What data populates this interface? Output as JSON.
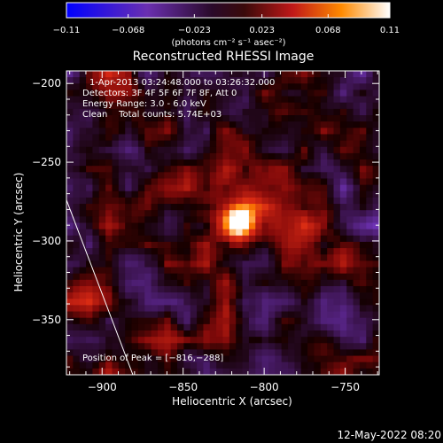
{
  "chart_data": {
    "type": "heatmap",
    "title": "Reconstructed RHESSI Image",
    "xlabel": "Heliocentric X (arcsec)",
    "ylabel": "Heliocentric Y (arcsec)",
    "xlim": [
      -922,
      -729
    ],
    "ylim": [
      -385,
      -192
    ],
    "x_ticks": [
      -900,
      -850,
      -800,
      -750
    ],
    "x_tick_labels": [
      "−900",
      "−850",
      "−800",
      "−750"
    ],
    "y_ticks": [
      -200,
      -250,
      -300,
      -350
    ],
    "y_tick_labels": [
      "−200",
      "−250",
      "−300",
      "−350"
    ],
    "colorbar": {
      "min": -0.11,
      "max": 0.11,
      "ticks": [
        -0.11,
        -0.068,
        -0.023,
        0.023,
        0.068,
        0.11
      ],
      "tick_labels": [
        "−0.11",
        "−0.068",
        "−0.023",
        "0.023",
        "0.068",
        "0.11"
      ],
      "unit_label": "(photons cm⁻² s⁻¹ asec⁻²)",
      "colormap": "blue-purple-red-yellow-white"
    },
    "peak": {
      "x": -816,
      "y": -288
    },
    "limb_line": {
      "x1": -922,
      "y1": -274,
      "x2": -881,
      "y2": -385
    },
    "annotations": {
      "time_range": "1-Apr-2013 03:24:48.000 to 03:26:32.000",
      "detectors": "Detectors: 3F 4F 5F 6F 7F 8F, Att 0",
      "energy": "Energy Range: 3.0 - 6.0 keV",
      "clean": "Clean    Total counts: 5.74E+03",
      "peak_label": "Position of Peak = [−816,−288]"
    }
  },
  "footer_date": "12-May-2022 08:20",
  "colors": {
    "background": "#000000",
    "foreground": "#ffffff",
    "colormap_stops": [
      "#0000ff",
      "#6a2fb0",
      "#3a0a3a",
      "#b01818",
      "#ff7a00",
      "#ffffff"
    ]
  }
}
